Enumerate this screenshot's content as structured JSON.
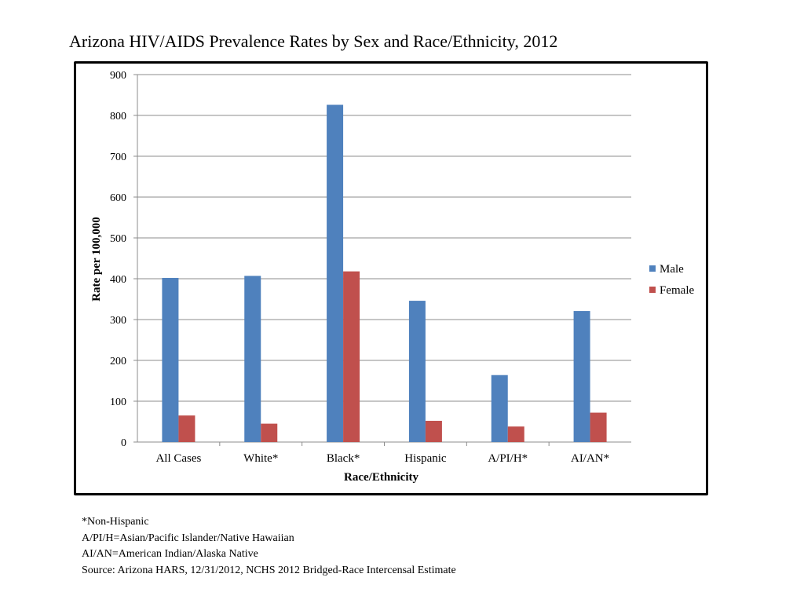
{
  "page": {
    "title": "Arizona HIV/AIDS Prevalence Rates by Sex and Race/Ethnicity, 2012"
  },
  "chart_data": {
    "type": "bar",
    "title": "Arizona HIV/AIDS Prevalence Rates by Sex and Race/Ethnicity, 2012",
    "categories": [
      "All Cases",
      "White*",
      "Black*",
      "Hispanic",
      "A/PI/H*",
      "AI/AN*"
    ],
    "series": [
      {
        "name": "Male",
        "values": [
          402,
          407,
          826,
          346,
          164,
          321
        ],
        "color": "#4F81BD"
      },
      {
        "name": "Female",
        "values": [
          65,
          45,
          418,
          52,
          38,
          72
        ],
        "color": "#C0504D"
      }
    ],
    "xlabel": "Race/Ethnicity",
    "ylabel": "Rate per 100,000",
    "ylim": [
      0,
      900
    ],
    "yticks": [
      0,
      100,
      200,
      300,
      400,
      500,
      600,
      700,
      800,
      900
    ],
    "grid": true,
    "legend": "right"
  },
  "notes": [
    "*Non-Hispanic",
    "A/PI/H=Asian/Pacific Islander/Native Hawaiian",
    "AI/AN=American Indian/Alaska Native",
    "Source: Arizona HARS, 12/31/2012, NCHS 2012 Bridged-Race Intercensal Estimate"
  ]
}
